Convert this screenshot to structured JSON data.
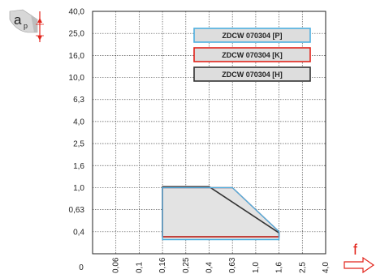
{
  "chart_data": {
    "type": "area",
    "title": "",
    "xlabel": "f",
    "ylabel": "ap",
    "ylabel_main": "a",
    "ylabel_sub": "p",
    "y_ticks": [
      "0,4",
      "0,63",
      "1,0",
      "1,6",
      "2,5",
      "4,0",
      "6,3",
      "10,0",
      "16,0",
      "25,0",
      "40,0"
    ],
    "x_ticks": [
      "0",
      "0,06",
      "0,1",
      "0,16",
      "0,25",
      "0,4",
      "0,63",
      "1,0",
      "1,6",
      "2,5",
      "4,0"
    ],
    "scale": "log-like (one grid step per tick value)",
    "grid": true,
    "legend_position": "top-right",
    "legend": [
      {
        "label": "ZDCW 070304 [P]",
        "color": "#4fb0e0"
      },
      {
        "label": "ZDCW 070304 [K]",
        "color": "#e2231a"
      },
      {
        "label": "ZDCW 070304 [H]",
        "color": "#333333"
      }
    ],
    "series": [
      {
        "name": "ZDCW 070304 [P]",
        "color": "#4fb0e0",
        "points": [
          [
            0.16,
            1.0
          ],
          [
            0.63,
            1.0
          ],
          [
            1.6,
            0.4
          ],
          [
            1.6,
            0.34
          ],
          [
            0.16,
            0.34
          ]
        ]
      },
      {
        "name": "ZDCW 070304 [K]",
        "color": "#e2231a",
        "points": [
          [
            0.16,
            1.0
          ],
          [
            0.63,
            1.0
          ],
          [
            1.0,
            0.63
          ],
          [
            1.6,
            0.4
          ],
          [
            1.6,
            0.36
          ],
          [
            0.16,
            0.36
          ]
        ]
      },
      {
        "name": "ZDCW 070304 [H]",
        "color": "#333333",
        "points": [
          [
            0.16,
            1.02
          ],
          [
            0.4,
            1.02
          ],
          [
            1.6,
            0.39
          ],
          [
            1.6,
            0.36
          ],
          [
            0.16,
            0.36
          ]
        ]
      }
    ]
  }
}
